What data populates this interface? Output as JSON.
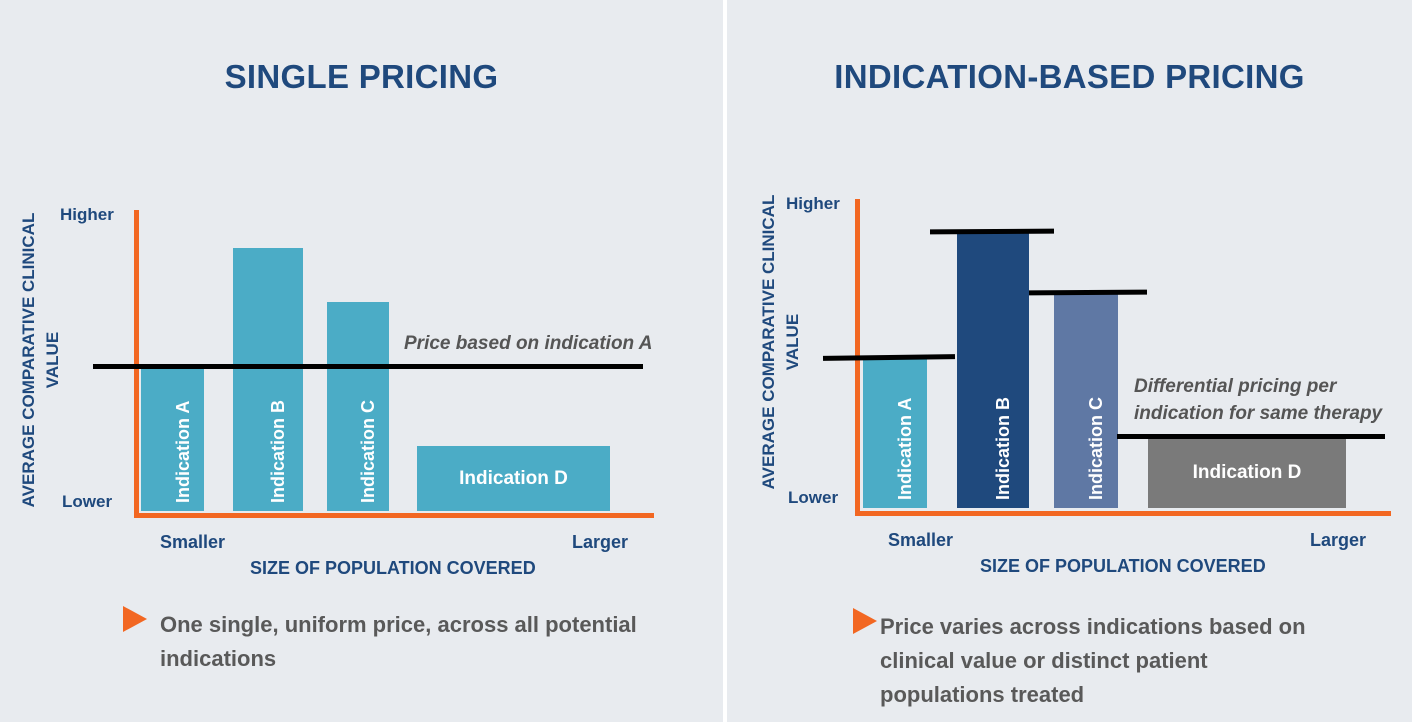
{
  "left_panel": {
    "title": "SINGLE PRICING",
    "y_axis_label": "AVERAGE COMPARATIVE CLINICAL VALUE",
    "y_high": "Higher",
    "y_low": "Lower",
    "x_small": "Smaller",
    "x_large": "Larger",
    "x_axis_label": "SIZE OF POPULATION COVERED",
    "bars": [
      {
        "label": "Indication A",
        "value": 0.49,
        "color": "#4bacc6"
      },
      {
        "label": "Indication B",
        "value": 0.89,
        "color": "#4bacc6"
      },
      {
        "label": "Indication C",
        "value": 0.71,
        "color": "#4bacc6"
      },
      {
        "label": "Indication D",
        "value": 0.22,
        "color": "#4bacc6"
      }
    ],
    "price_level": 0.49,
    "annotation": "Price based on indication A",
    "bullet": "One single, uniform price, across all potential indications"
  },
  "right_panel": {
    "title": "INDICATION-BASED PRICING",
    "y_axis_label": "AVERAGE COMPARATIVE CLINICAL VALUE",
    "y_high": "Higher",
    "y_low": "Lower",
    "x_small": "Smaller",
    "x_large": "Larger",
    "x_axis_label": "SIZE OF POPULATION COVERED",
    "bars": [
      {
        "label": "Indication A",
        "value": 0.49,
        "color": "#4bacc6"
      },
      {
        "label": "Indication B",
        "value": 0.9,
        "color": "#1f497d"
      },
      {
        "label": "Indication C",
        "value": 0.7,
        "color": "#5f78a4"
      },
      {
        "label": "Indication D",
        "value": 0.23,
        "color": "#7a7a7a"
      }
    ],
    "annotation_line1": "Differential pricing per",
    "annotation_line2": "indication for same therapy",
    "bullet": "Price varies across indications based on clinical value or distinct patient populations treated"
  },
  "colors": {
    "background": "#e8ebef",
    "title": "#1f497d",
    "axis": "#f26722",
    "price_line": "#000000"
  }
}
